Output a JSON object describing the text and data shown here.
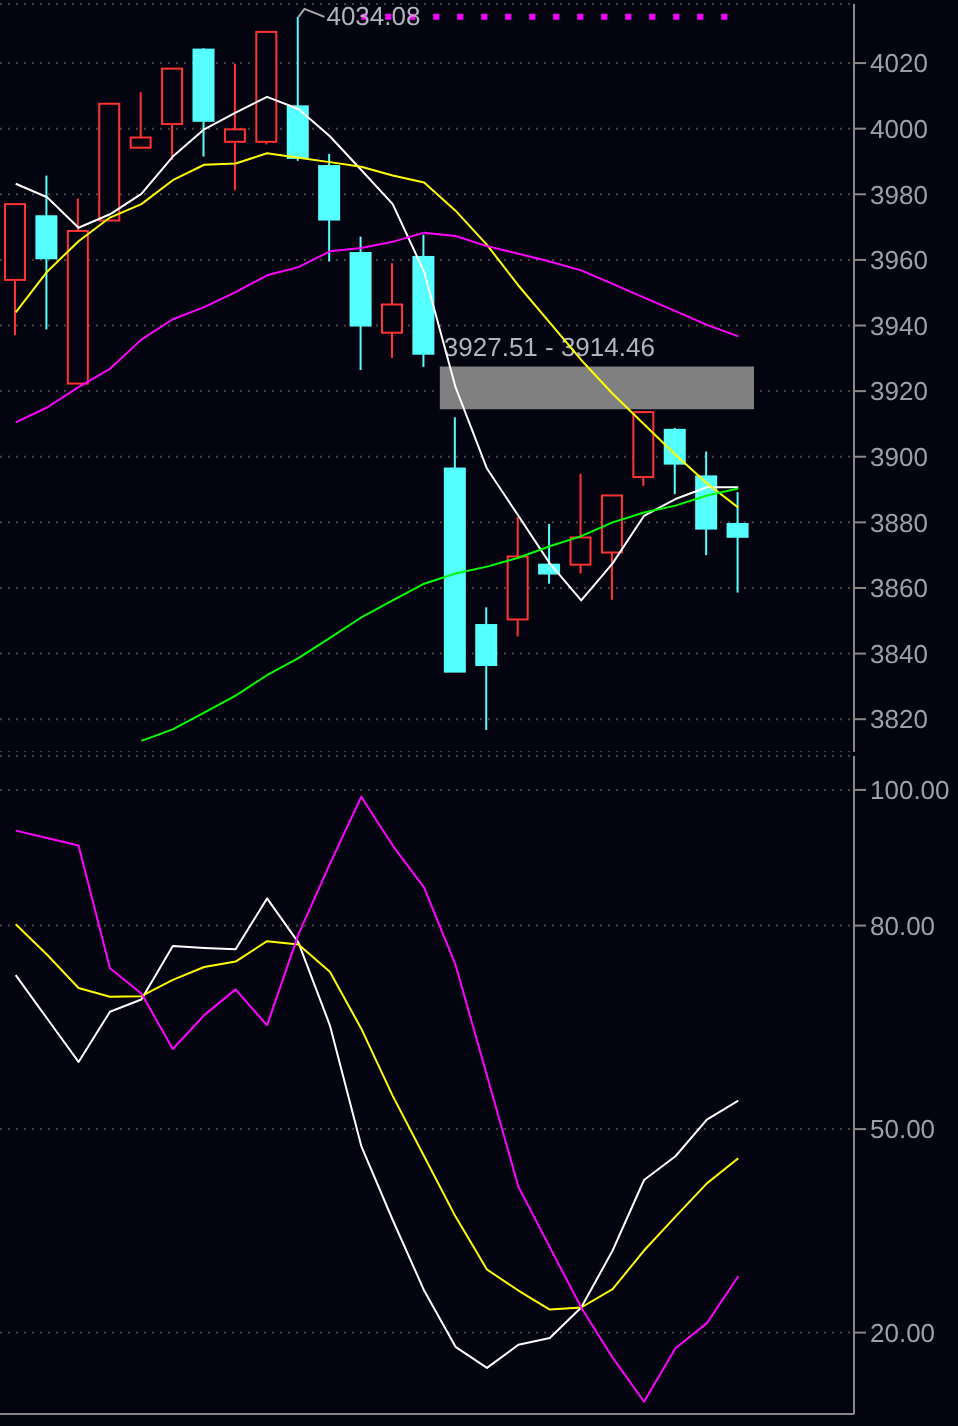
{
  "chart_data": [
    {
      "type": "candlestick",
      "categories": [
        null,
        null,
        null,
        null,
        null,
        null,
        null,
        null,
        null,
        null,
        null,
        null,
        null,
        null,
        null,
        null,
        null,
        null,
        null,
        null,
        null,
        null,
        null,
        null
      ],
      "ohlc": [
        [
          3953.9,
          3977,
          3937,
          3977
        ],
        [
          3973.3,
          3985.7,
          3938.8,
          3960.5
        ],
        [
          3922.3,
          3978.7,
          3922.3,
          3968.8
        ],
        [
          3972,
          4007.6,
          3972,
          4007.6
        ],
        [
          3994.2,
          4011.1,
          3994.2,
          3997.3
        ],
        [
          4001.4,
          4018.3,
          3990.5,
          4018.3
        ],
        [
          4024.1,
          4024.5,
          3991.5,
          4002.4
        ],
        [
          3996,
          4019.8,
          3981.2,
          3999.8
        ],
        [
          3996,
          4029.5,
          3995.2,
          4029.5
        ],
        [
          4006.8,
          4034.08,
          3990.2,
          3991.1
        ],
        [
          3988.6,
          3992.3,
          3959.5,
          3972.3
        ],
        [
          3962.1,
          3967.1,
          3926.4,
          3940
        ],
        [
          3937.8,
          3959,
          3930.1,
          3946.4
        ],
        [
          3960.9,
          3967.7,
          3927.4,
          3931.4
        ],
        [
          3896.4,
          3912,
          3834.5,
          3834.5
        ],
        [
          3848.7,
          3854.1,
          3816.7,
          3836.5
        ],
        [
          3850.4,
          3881.6,
          3845.2,
          3869.6
        ],
        [
          3867.1,
          3879.5,
          3861.3,
          3864.4
        ],
        [
          3867.1,
          3894.8,
          3864.4,
          3875.4
        ],
        [
          3870.8,
          3888.2,
          3856.4,
          3888.2
        ],
        [
          3893.8,
          3913.6,
          3891.1,
          3913.6
        ],
        [
          3908.2,
          3908.8,
          3888.6,
          3897.9
        ],
        [
          3894,
          3901.6,
          3870,
          3878.1
        ],
        [
          3879.5,
          3889.2,
          3858.6,
          3875.6
        ]
      ],
      "colors": [
        "#ff3333",
        "#55ffff",
        "#ff3333",
        "#ff3333",
        "#ff3333",
        "#ff3333",
        "#55ffff",
        "#ff3333",
        "#ff3333",
        "#55ffff",
        "#55ffff",
        "#55ffff",
        "#ff3333",
        "#55ffff",
        "#55ffff",
        "#55ffff",
        "#ff3333",
        "#55ffff",
        "#ff3333",
        "#ff3333",
        "#ff3333",
        "#55ffff",
        "#55ffff",
        "#55ffff"
      ],
      "series": [
        {
          "type": "line",
          "color": "#ffffff",
          "values": [
            3983.2,
            3979.1,
            3969.8,
            3973.9,
            3980.1,
            3991.5,
            3999.8,
            4004.9,
            4009.7,
            4006,
            3997.7,
            3987.4,
            3977,
            3956.4,
            3921.2,
            3896.4,
            3882,
            3867.5,
            3856.2,
            3867.5,
            3882,
            3887.1,
            3890.7,
            3890.7
          ]
        },
        {
          "type": "line",
          "color": "#ffff00",
          "values": [
            3944,
            3956.4,
            3965.7,
            3972.9,
            3977,
            3984.3,
            3989,
            3989.4,
            3992.5,
            3991.1,
            3989.8,
            3988.4,
            3985.7,
            3983.6,
            3975,
            3964.6,
            3952.2,
            3940.9,
            3929.5,
            3919.2,
            3909.9,
            3900.6,
            3891.9,
            3884.5
          ]
        },
        {
          "type": "line",
          "color": "#ff00ff",
          "values": [
            3910.5,
            3915,
            3921.2,
            3926.8,
            3935.7,
            3941.9,
            3945.6,
            3950.2,
            3955.3,
            3957.8,
            3962.6,
            3963.6,
            3965.5,
            3968.3,
            3967.3,
            3964.2,
            3961.9,
            3959.5,
            3956.8,
            3952.7,
            3948.5,
            3944.4,
            3940.2,
            3936.7
          ]
        },
        {
          "type": "line",
          "color": "#00ff00",
          "values": [
            null,
            null,
            null,
            null,
            3813.4,
            3816.9,
            3822,
            3827.2,
            3833.4,
            3838.6,
            3844.8,
            3851,
            3856.2,
            3861.3,
            3864.4,
            3866.5,
            3869.2,
            3872.7,
            3875.8,
            3880,
            3883,
            3885.1,
            3888.2,
            3890.3
          ]
        }
      ],
      "ylim": [
        3810,
        4038
      ],
      "yticks": [
        3820,
        3840,
        3860,
        3880,
        3900,
        3920,
        3940,
        3960,
        3980,
        4000,
        4020
      ],
      "grid": "y",
      "tick_labels": "y",
      "bands": [
        {
          "axis": "y",
          "from": 3914.46,
          "to": 3927.51,
          "label": "3927.51 - 3914.46",
          "color": "#808080"
        }
      ],
      "ref_lines": [
        {
          "axis": "y",
          "value": 4034.08,
          "color": "#ff00ff",
          "line_style": "dotted"
        }
      ],
      "annotations": [
        {
          "text": "4034.08",
          "y": 4034.08
        }
      ]
    },
    {
      "type": "line",
      "categories": [
        null,
        null,
        null,
        null,
        null,
        null,
        null,
        null,
        null,
        null,
        null,
        null,
        null,
        null,
        null,
        null,
        null,
        null,
        null,
        null,
        null,
        null,
        null,
        null
      ],
      "series": [
        {
          "color": "#ffffff",
          "values": [
            72.7,
            66.3,
            59.9,
            67.3,
            69.1,
            77,
            76.7,
            76.5,
            84,
            77.5,
            65.3,
            47.5,
            36.6,
            26.2,
            17.9,
            14.8,
            18.2,
            19.2,
            23.7,
            32.1,
            42.5,
            46,
            51.4,
            54.2
          ]
        },
        {
          "color": "#ffff00",
          "values": [
            80.2,
            75.7,
            70.8,
            69.5,
            69.6,
            72,
            73.9,
            74.7,
            77.7,
            77.2,
            73.2,
            64.8,
            54.9,
            46,
            37.1,
            29.3,
            26.2,
            23.4,
            23.7,
            26.4,
            32.1,
            37.1,
            42,
            45.7
          ]
        },
        {
          "color": "#ff00ff",
          "values": [
            94,
            92.9,
            91.8,
            73.7,
            70,
            61.8,
            66.8,
            70.6,
            65.3,
            78.7,
            89.1,
            99,
            91.8,
            85.6,
            74.2,
            57.9,
            41.5,
            32.6,
            23.7,
            16.3,
            9.8,
            17.7,
            21.4,
            28.3
          ]
        }
      ],
      "ylim": [
        8,
        105
      ],
      "yticks": [
        {
          "value": 20,
          "label": "20.00"
        },
        {
          "value": 50,
          "label": "50.00"
        },
        {
          "value": 80,
          "label": "80.00"
        },
        {
          "value": 100,
          "label": "100.00"
        }
      ],
      "grid": "y",
      "tick_labels": "y"
    }
  ]
}
